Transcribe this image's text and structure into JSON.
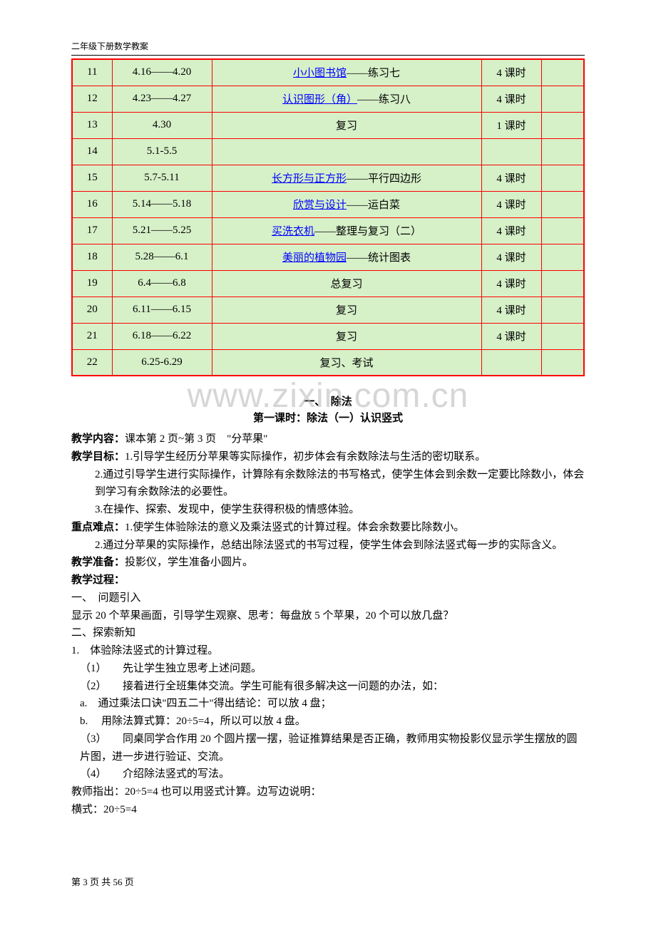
{
  "header": {
    "title": "二年级下册数学教案"
  },
  "watermark": "www.zixin.com.cn",
  "schedule": {
    "columns": {
      "week": 56,
      "date": 140,
      "hours": 84,
      "note": 60
    },
    "background_color": "#d6f0c8",
    "border_color": "#ff0000",
    "link_color": "#0000ff",
    "rows": [
      {
        "week": "11",
        "date": "4.16——4.20",
        "link": "小小图书馆",
        "rest": "——练习七",
        "hours": "4 课时",
        "note": ""
      },
      {
        "week": "12",
        "date": "4.23——4.27",
        "link": "认识图形（角）",
        "rest": "——练习八",
        "hours": "4 课时",
        "note": ""
      },
      {
        "week": "13",
        "date": "4.30",
        "link": "",
        "rest": "复习",
        "hours": "1 课时",
        "note": ""
      },
      {
        "week": "14",
        "date": "5.1-5.5",
        "link": "",
        "rest": "",
        "hours": "",
        "note": ""
      },
      {
        "week": "15",
        "date": "5.7-5.11",
        "link": "长方形与正方形",
        "rest": "——平行四边形",
        "hours": "4 课时",
        "note": ""
      },
      {
        "week": "16",
        "date": "5.14——5.18",
        "link": "欣赏与设计",
        "rest": "——运白菜",
        "hours": "4 课时",
        "note": ""
      },
      {
        "week": "17",
        "date": "5.21——5.25",
        "link": "买洗衣机",
        "rest": "——整理与复习（二）",
        "hours": "4 课时",
        "note": ""
      },
      {
        "week": "18",
        "date": "5.28——6.1",
        "link": "美丽的植物园",
        "rest": "——统计图表",
        "hours": "4 课时",
        "note": ""
      },
      {
        "week": "19",
        "date": "6.4——6.8",
        "link": "",
        "rest": "总复习",
        "hours": "4 课时",
        "note": ""
      },
      {
        "week": "20",
        "date": "6.11——6.15",
        "link": "",
        "rest": "复习",
        "hours": "4 课时",
        "note": ""
      },
      {
        "week": "21",
        "date": "6.18——6.22",
        "link": "",
        "rest": "复习",
        "hours": "4 课时",
        "note": ""
      },
      {
        "week": "22",
        "date": "6.25-6.29",
        "link": "",
        "rest": "复习、考试",
        "hours": "",
        "note": ""
      }
    ]
  },
  "lesson": {
    "unit_title": "一、　除法",
    "lesson_title": "第一课时：除法（一）认识竖式",
    "content_label": "教学内容：",
    "content_text": "课本第 2 页~第 3 页　\"分苹果\"",
    "goal_label": "教学目标：",
    "goal1": "1.引导学生经历分苹果等实际操作，初步体会有余数除法与生活的密切联系。",
    "goal2": "2.通过引导学生进行实际操作，计算除有余数除法的书写格式，使学生体会到余数一定要比除数小，体会到学习有余数除法的必要性。",
    "goal3": "3.在操作、探索、发现中，使学生获得积极的情感体验。",
    "key_label": "重点难点：",
    "key1": "1.使学生体验除法的意义及乘法竖式的计算过程。体会余数要比除数小。",
    "key2": "2.通过分苹果的实际操作，总结出除法竖式的书写过程，使学生体会到除法竖式每一步的实际含义。",
    "prep_label": "教学准备：",
    "prep_text": "投影仪，学生准备小圆片。",
    "proc_label": "教学过程：",
    "proc_s1": "一、　问题引入",
    "proc_s1_text": "显示 20 个苹果画面，引导学生观察、思考：每盘放 5 个苹果，20 个可以放几盘？",
    "proc_s2": "二、探索新知",
    "proc_step1": "1.　体验除法竖式的计算过程。",
    "proc_sub1": "（1）　　先让学生独立思考上述问题。",
    "proc_sub2": "（2）　　接着进行全班集体交流。学生可能有很多解决这一问题的办法，如：",
    "proc_a": "a.　通过乘法口诀\"四五二十\"得出结论：可以放 4 盘；",
    "proc_b": "b.　 用除法算式算：20÷5=4，所以可以放 4 盘。",
    "proc_sub3": "（3）　　同桌同学合作用 20 个圆片摆一摆，验证推算结果是否正确，教师用实物投影仪显示学生摆放的圆片图，进一步进行验证、交流。",
    "proc_sub4": "（4）　　介绍除法竖式的写法。",
    "proc_t1": "教师指出：20÷5=4 也可以用竖式计算。边写边说明：",
    "proc_t2": "横式：20÷5=4"
  },
  "footer": {
    "text": "第 3 页 共 56 页"
  }
}
